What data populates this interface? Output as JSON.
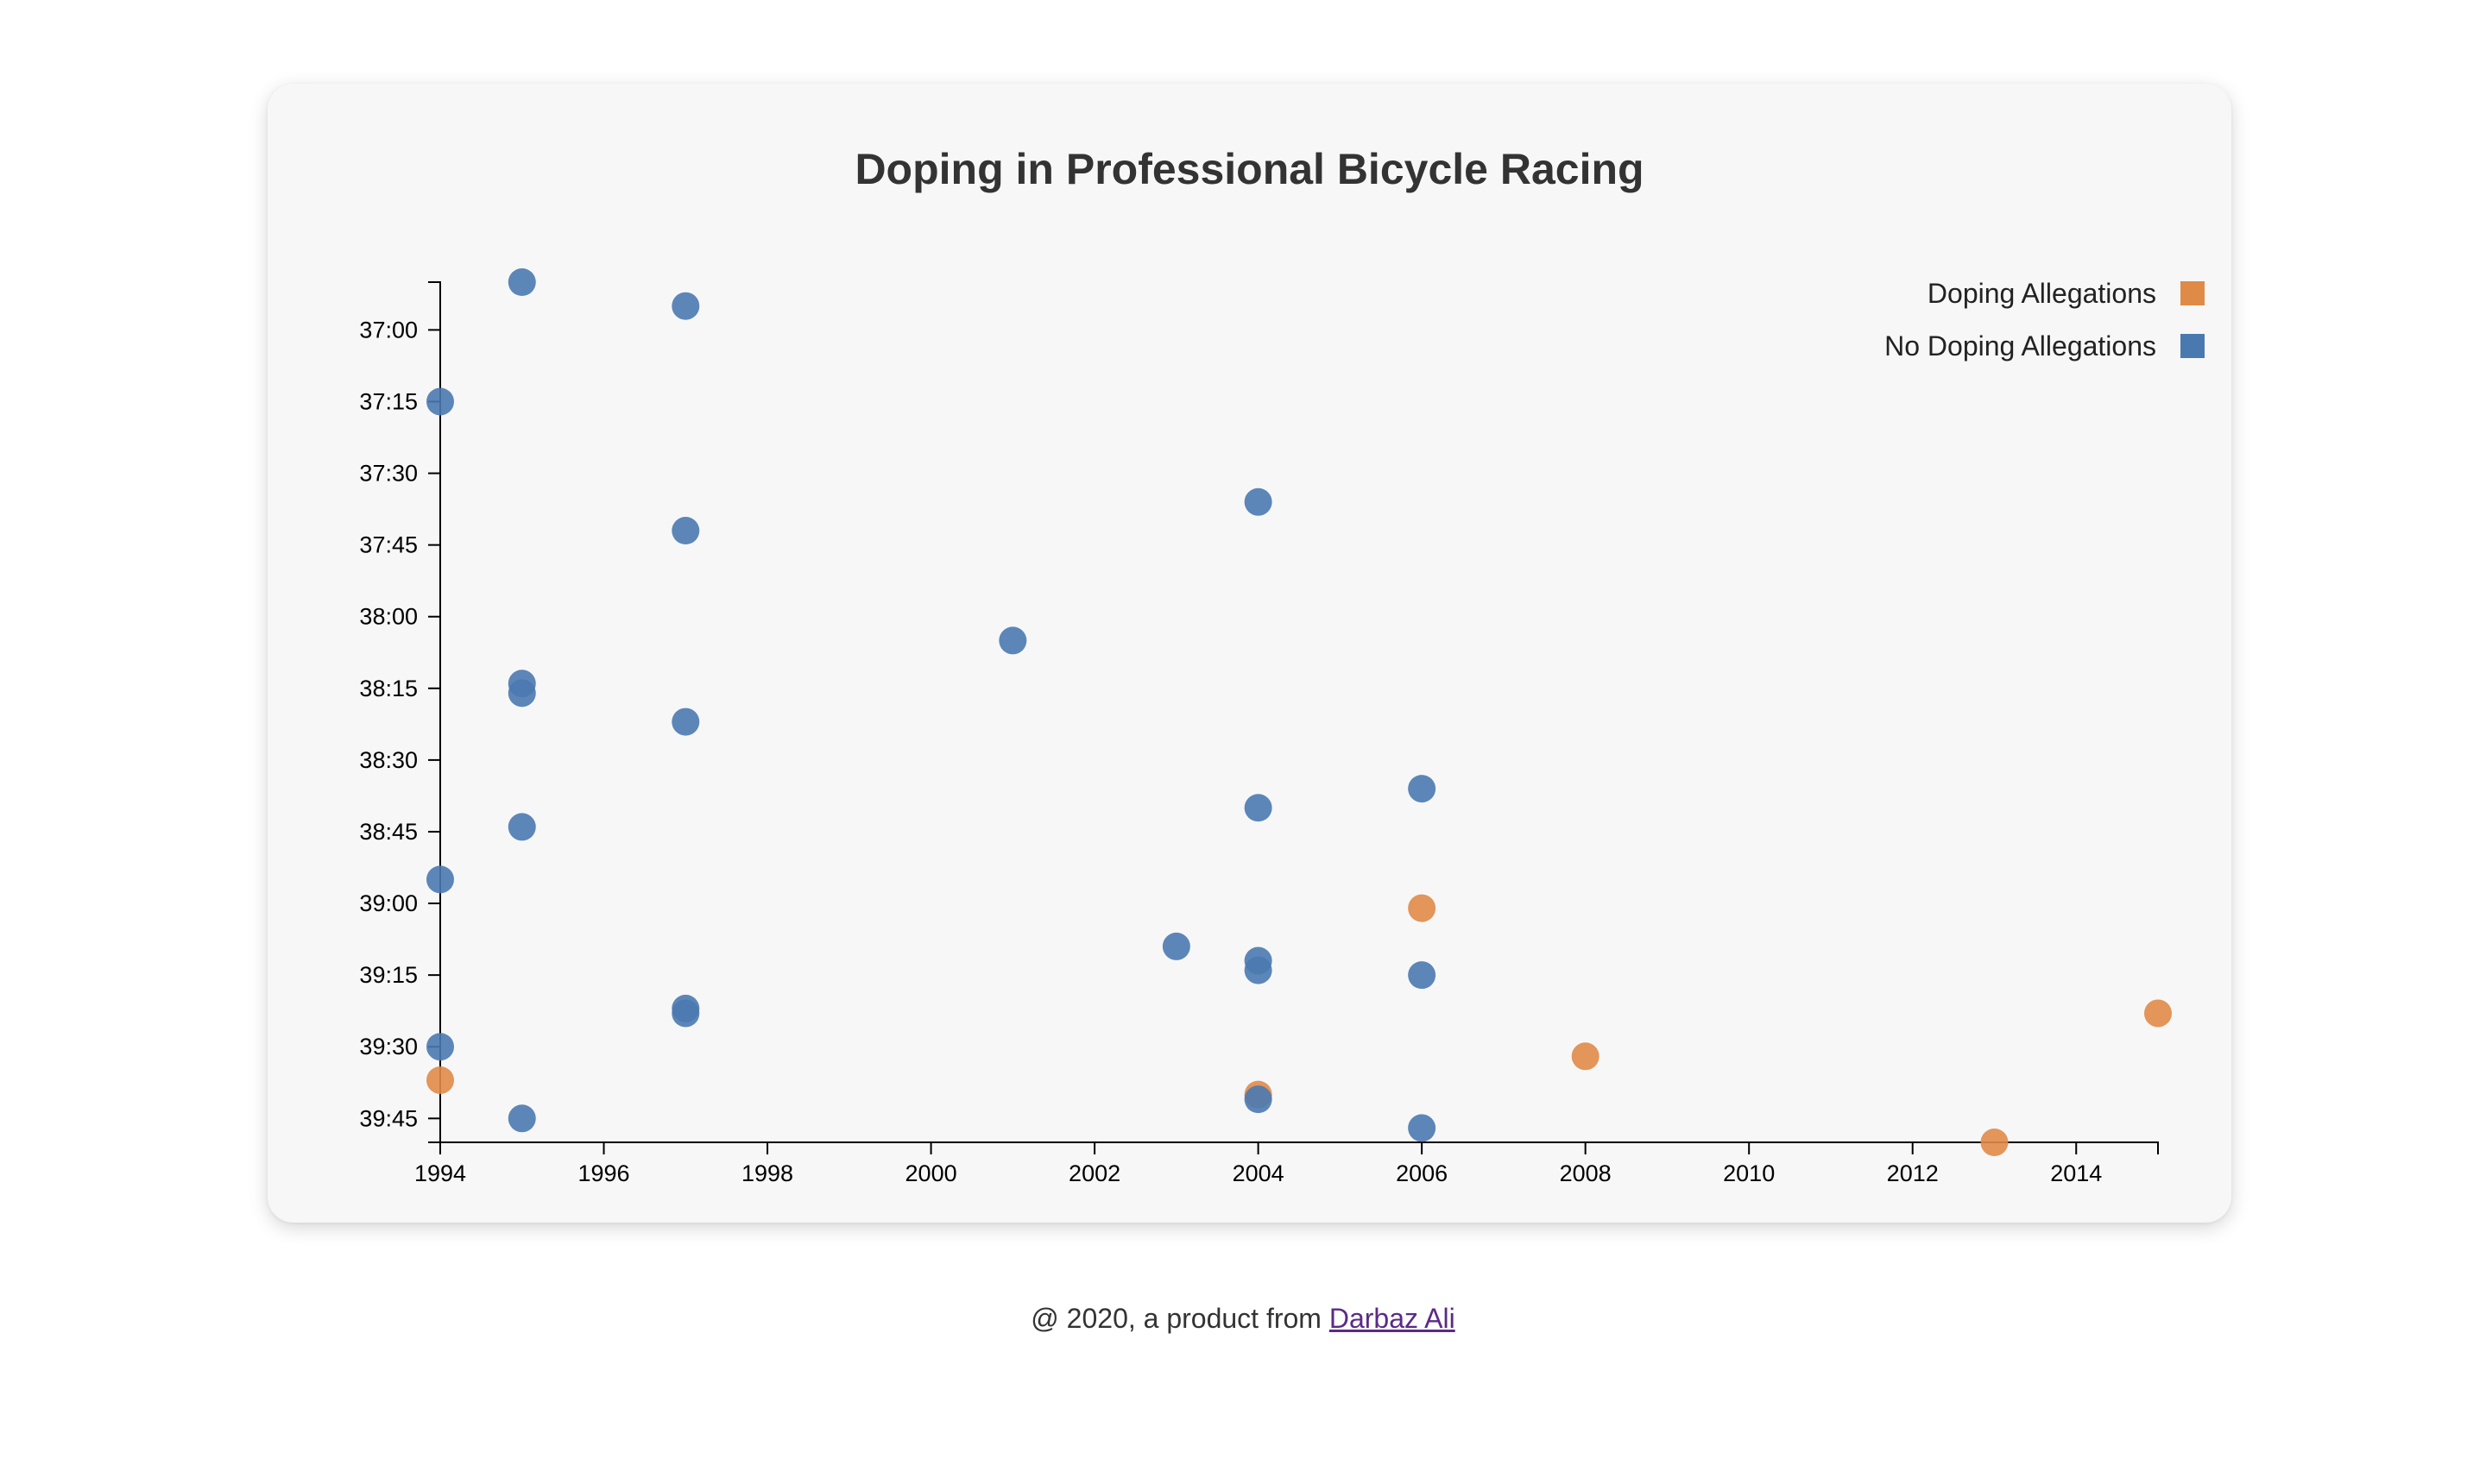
{
  "chart_data": {
    "type": "scatter",
    "title": "Doping in Professional Bicycle Racing",
    "xlabel": "",
    "ylabel": "",
    "xlim": [
      1994,
      2015
    ],
    "ylim": [
      "36:50",
      "39:50"
    ],
    "x_ticks": [
      "1994",
      "1996",
      "1998",
      "2000",
      "2002",
      "2004",
      "2006",
      "2008",
      "2010",
      "2012",
      "2014"
    ],
    "y_ticks": [
      "37:00",
      "37:15",
      "37:30",
      "37:45",
      "38:00",
      "38:15",
      "38:30",
      "38:45",
      "39:00",
      "39:15",
      "39:30",
      "39:45"
    ],
    "y_reversed": true,
    "grid": false,
    "legend_position": "top-right",
    "series": [
      {
        "name": "Doping Allegations",
        "color": "#e08a48",
        "points": [
          {
            "x": 2006,
            "y": "39:01"
          },
          {
            "x": 2015,
            "y": "39:23"
          },
          {
            "x": 2008,
            "y": "39:32"
          },
          {
            "x": 1994,
            "y": "39:37"
          },
          {
            "x": 2004,
            "y": "39:40"
          },
          {
            "x": 2013,
            "y": "39:50"
          }
        ]
      },
      {
        "name": "No Doping Allegations",
        "color": "#4a79b0",
        "points": [
          {
            "x": 1995,
            "y": "36:50"
          },
          {
            "x": 1997,
            "y": "36:55"
          },
          {
            "x": 1994,
            "y": "37:15"
          },
          {
            "x": 2004,
            "y": "37:36"
          },
          {
            "x": 1997,
            "y": "37:42"
          },
          {
            "x": 2001,
            "y": "38:05"
          },
          {
            "x": 1995,
            "y": "38:14"
          },
          {
            "x": 1995,
            "y": "38:16"
          },
          {
            "x": 1997,
            "y": "38:22"
          },
          {
            "x": 2006,
            "y": "38:36"
          },
          {
            "x": 2004,
            "y": "38:40"
          },
          {
            "x": 1995,
            "y": "38:44"
          },
          {
            "x": 1994,
            "y": "38:55"
          },
          {
            "x": 2003,
            "y": "39:09"
          },
          {
            "x": 2004,
            "y": "39:12"
          },
          {
            "x": 2004,
            "y": "39:14"
          },
          {
            "x": 2006,
            "y": "39:15"
          },
          {
            "x": 1997,
            "y": "39:22"
          },
          {
            "x": 1997,
            "y": "39:23"
          },
          {
            "x": 1994,
            "y": "39:30"
          },
          {
            "x": 2004,
            "y": "39:41"
          },
          {
            "x": 1995,
            "y": "39:45"
          },
          {
            "x": 2006,
            "y": "39:47"
          }
        ]
      }
    ]
  },
  "footer": {
    "prefix": "@ 2020, a product from ",
    "link_text": "Darbaz Ali"
  }
}
